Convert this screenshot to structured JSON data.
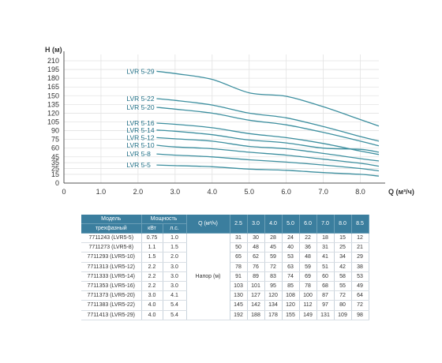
{
  "chart_data": {
    "type": "line",
    "xlabel": "Q (м³/ч)",
    "ylabel": "H (м)",
    "xlim": [
      0,
      8.5
    ],
    "ylim": [
      0,
      210
    ],
    "x_ticks": [
      "0",
      "1.0",
      "2.0",
      "3.0",
      "4.0",
      "5.0",
      "6.0",
      "7.0",
      "8.0"
    ],
    "y_ticks": [
      "0",
      "15",
      "25",
      "35",
      "45",
      "60",
      "75",
      "90",
      "105",
      "120",
      "135",
      "150",
      "165",
      "180",
      "195",
      "210"
    ],
    "y_tick_values": [
      0,
      15,
      25,
      35,
      45,
      60,
      75,
      90,
      105,
      120,
      135,
      150,
      165,
      180,
      195,
      210
    ],
    "grid": true,
    "line_color": "#3d8f9f",
    "x": [
      2.5,
      3.0,
      4.0,
      5.0,
      6.0,
      7.0,
      8.0,
      8.5
    ],
    "series": [
      {
        "name": "LVR 5-29",
        "values": [
          192,
          188,
          178,
          155,
          149,
          131,
          109,
          98
        ]
      },
      {
        "name": "LVR 5-22",
        "values": [
          145,
          142,
          134,
          120,
          112,
          97,
          80,
          72
        ]
      },
      {
        "name": "LVR 5-20",
        "values": [
          130,
          127,
          120,
          108,
          100,
          87,
          72,
          64
        ]
      },
      {
        "name": "LVR 5-16",
        "values": [
          103,
          101,
          95,
          85,
          78,
          68,
          55,
          49
        ]
      },
      {
        "name": "LVR 5-14",
        "values": [
          91,
          89,
          83,
          74,
          69,
          60,
          58,
          53
        ]
      },
      {
        "name": "LVR 5-12",
        "values": [
          78,
          76,
          72,
          63,
          59,
          51,
          42,
          38
        ]
      },
      {
        "name": "LVR 5-10",
        "values": [
          65,
          62,
          59,
          53,
          48,
          41,
          34,
          29
        ]
      },
      {
        "name": "LVR 5-8",
        "values": [
          50,
          48,
          45,
          40,
          36,
          31,
          25,
          21
        ]
      },
      {
        "name": "LVR 5-5",
        "values": [
          31,
          30,
          28,
          24,
          22,
          18,
          15,
          12
        ]
      }
    ]
  },
  "table": {
    "header_model": "Модель",
    "header_model_sub": "трехфазный",
    "header_power": "Мощность",
    "header_kw": "кВт",
    "header_hp": "л.с.",
    "header_q": "Q (м³/ч)",
    "q_values": [
      "2.5",
      "3.0",
      "4.0",
      "5.0",
      "6.0",
      "7.0",
      "8.0",
      "8.5"
    ],
    "napor_label": "Напор (м)",
    "rows": [
      {
        "model": "7711243 (LVR5-5)",
        "kw": "0.75",
        "hp": "1.0",
        "h": [
          "31",
          "30",
          "28",
          "24",
          "22",
          "18",
          "15",
          "12"
        ]
      },
      {
        "model": "7711273 (LVR5-8)",
        "kw": "1.1",
        "hp": "1.5",
        "h": [
          "50",
          "48",
          "45",
          "40",
          "36",
          "31",
          "25",
          "21"
        ]
      },
      {
        "model": "7711293 (LVR5-10)",
        "kw": "1.5",
        "hp": "2.0",
        "h": [
          "65",
          "62",
          "59",
          "53",
          "48",
          "41",
          "34",
          "29"
        ]
      },
      {
        "model": "7711313 (LVR5-12)",
        "kw": "2.2",
        "hp": "3.0",
        "h": [
          "78",
          "76",
          "72",
          "63",
          "59",
          "51",
          "42",
          "38"
        ]
      },
      {
        "model": "7711333 (LVR5-14)",
        "kw": "2.2",
        "hp": "3.0",
        "h": [
          "91",
          "89",
          "83",
          "74",
          "69",
          "60",
          "58",
          "53"
        ]
      },
      {
        "model": "7711353 (LVR5-16)",
        "kw": "2.2",
        "hp": "3.0",
        "h": [
          "103",
          "101",
          "95",
          "85",
          "78",
          "68",
          "55",
          "49"
        ]
      },
      {
        "model": "7711373 (LVR5-20)",
        "kw": "3.0",
        "hp": "4.1",
        "h": [
          "130",
          "127",
          "120",
          "108",
          "100",
          "87",
          "72",
          "64"
        ]
      },
      {
        "model": "7711383 (LVR5-22)",
        "kw": "4.0",
        "hp": "5.4",
        "h": [
          "145",
          "142",
          "134",
          "120",
          "112",
          "97",
          "80",
          "72"
        ]
      },
      {
        "model": "7711413 (LVR5-29)",
        "kw": "4.0",
        "hp": "5.4",
        "h": [
          "192",
          "188",
          "178",
          "155",
          "149",
          "131",
          "109",
          "98"
        ]
      }
    ]
  }
}
